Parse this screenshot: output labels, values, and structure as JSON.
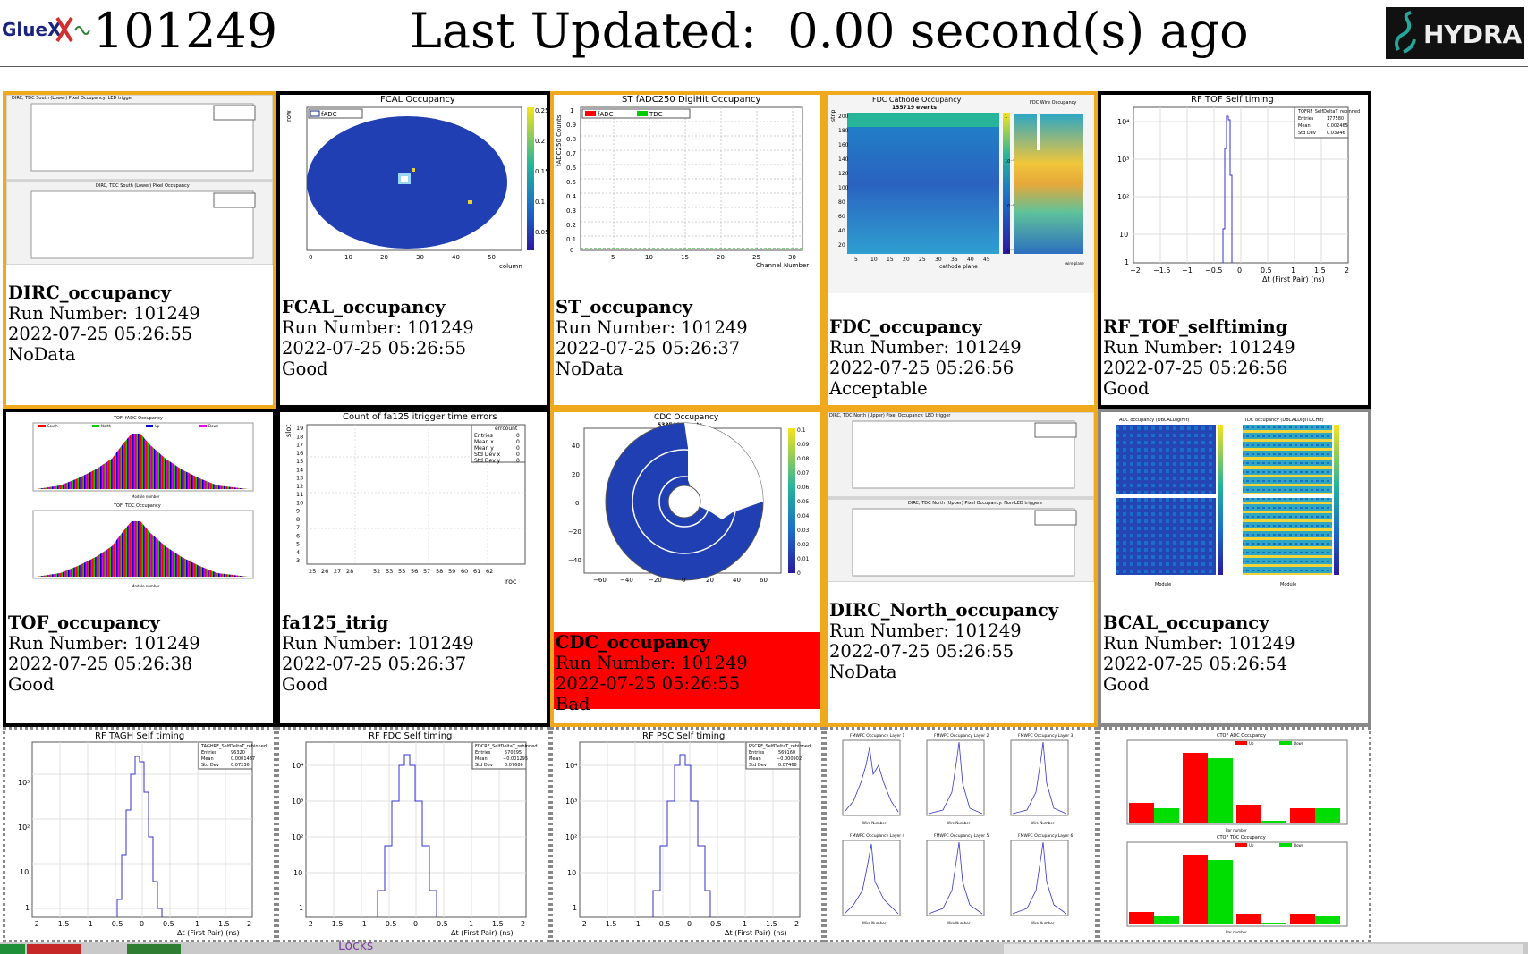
{
  "header": {
    "logo_text": "GlueX",
    "run_number": "101249",
    "last_updated": "Last Updated:  0.00 second(s) ago",
    "hydra_text": "HYDRA"
  },
  "colors": {
    "good_border": "#000000",
    "warn_border": "#f0a81c",
    "bad_fill": "#ff0000",
    "neutral_border": "#888888",
    "hist_line": "#3333cc"
  },
  "panels": [
    {
      "name": "DIRC_occupancy",
      "run": "Run Number: 101249",
      "time": "2022-07-25 05:26:55",
      "status": "NoData",
      "plot_titles": [
        "DIRC, TDC South (Lower) Pixel Occupancy: LED trigger",
        "DIRC, TDC South (Lower) Pixel Occupancy"
      ]
    },
    {
      "name": "FCAL_occupancy",
      "run": "Run Number: 101249",
      "time": "2022-07-25 05:26:55",
      "status": "Good",
      "plot_title": "FCAL Occupancy",
      "legend": "fADC",
      "x_label": "column",
      "y_label": "row",
      "x_ticks": [
        "0",
        "10",
        "20",
        "30",
        "40",
        "50"
      ],
      "z_ticks": [
        "0.25",
        "0.2",
        "0.15",
        "0.1",
        "0.05"
      ]
    },
    {
      "name": "ST_occupancy",
      "run": "Run Number: 101249",
      "time": "2022-07-25 05:26:37",
      "status": "NoData",
      "plot_title": "ST fADC250 DigiHit Occupancy",
      "legend": [
        "fADC",
        "TDC"
      ],
      "x_label": "Channel Number",
      "y_label": "fADC250 Counts",
      "x_ticks": [
        "5",
        "10",
        "15",
        "20",
        "25",
        "30"
      ],
      "y_ticks": [
        "1",
        "0.9",
        "0.8",
        "0.7",
        "0.6",
        "0.5",
        "0.4",
        "0.3",
        "0.2",
        "0.1",
        "0"
      ]
    },
    {
      "name": "FDC_occupancy",
      "run": "Run Number: 101249",
      "time": "2022-07-25 05:26:56",
      "status": "Acceptable",
      "plot_title": "FDC Cathode Occupancy",
      "subtitle": "155719 events",
      "x_label": "cathode plane",
      "y_label": "strip",
      "side_title": "FDC Wire Occupancy",
      "side_x_label": "wire plane",
      "x_ticks": [
        "5",
        "10",
        "15",
        "20",
        "25",
        "30",
        "35",
        "40",
        "45"
      ],
      "y_ticks": [
        "200",
        "180",
        "160",
        "140",
        "120",
        "100",
        "80",
        "60",
        "40",
        "20"
      ],
      "z_ticks": [
        "1",
        "10⁻¹",
        "10⁻²",
        "10⁻³"
      ]
    },
    {
      "name": "RF_TOF_selftiming",
      "run": "Run Number: 101249",
      "time": "2022-07-25 05:26:56",
      "status": "Good",
      "plot_title": "RF TOF Self timing",
      "x_label": "Δt (First Pair) (ns)",
      "stats": {
        "title": "TOFRF_SelfDeltaT_rebinned",
        "Entries": "177580",
        "Mean": "0.002465",
        "Std Dev": "0.03946"
      },
      "x_ticks": [
        "−2",
        "−1.5",
        "−1",
        "−0.5",
        "0",
        "0.5",
        "1",
        "1.5",
        "2"
      ],
      "y_ticks": [
        "10⁴",
        "10³",
        "10²",
        "10",
        "1"
      ]
    },
    {
      "name": "TOF_occupancy",
      "run": "Run Number: 101249",
      "time": "2022-07-25 05:26:38",
      "status": "Good",
      "plot_titles": [
        "TOF, fADC Occupancy",
        "TOF, TDC Occupancy"
      ],
      "x_label": "Module number",
      "legend": [
        "South",
        "North",
        "Up",
        "Down"
      ]
    },
    {
      "name": "fa125_itrig",
      "run": "Run Number: 101249",
      "time": "2022-07-25 05:26:37",
      "status": "Good",
      "plot_title": "Count of fa125 itrigger time errors",
      "x_label": "roc",
      "y_label": "slot",
      "stats": {
        "title": "errcount",
        "Entries": "0",
        "Mean x": "0",
        "Mean y": "0",
        "Std Dev x": "0",
        "Std Dev y": "0"
      },
      "x_ticks": [
        "25",
        "26",
        "27",
        "28",
        "52",
        "53",
        "55",
        "56",
        "57",
        "58",
        "59",
        "60",
        "61",
        "62"
      ],
      "y_ticks": [
        "19",
        "18",
        "17",
        "16",
        "15",
        "14",
        "13",
        "12",
        "11",
        "10",
        "9",
        "8",
        "7",
        "6",
        "5",
        "4",
        "3"
      ]
    },
    {
      "name": "CDC_occupancy",
      "run": "Run Number: 101249",
      "time": "2022-07-25 05:26:55",
      "status": "Bad",
      "plot_title": "CDC Occupancy",
      "subtitle": "538546 events",
      "x_ticks": [
        "−60",
        "−40",
        "−20",
        "0",
        "20",
        "40",
        "60"
      ],
      "y_ticks": [
        "40",
        "20",
        "0",
        "−20",
        "−40"
      ],
      "z_ticks": [
        "0.1",
        "0.09",
        "0.08",
        "0.07",
        "0.06",
        "0.05",
        "0.04",
        "0.03",
        "0.02",
        "0.01",
        "0"
      ]
    },
    {
      "name": "DIRC_North_occupancy",
      "run": "Run Number: 101249",
      "time": "2022-07-25 05:26:55",
      "status": "NoData",
      "plot_titles": [
        "DIRC, TDC North (Upper) Pixel Occupancy: LED trigger",
        "DIRC, TDC North (Upper) Pixel Occupancy: Non-LED triggers"
      ]
    },
    {
      "name": "BCAL_occupancy",
      "run": "Run Number: 101249",
      "time": "2022-07-25 05:26:54",
      "status": "Good",
      "plot_titles": [
        "ADC occupancy (DBCALDigiHit)",
        "TDC occupancy (DBCALDigiTDCHit)"
      ],
      "x_label": "Module"
    },
    {
      "name": "RF_TAGH_selftiming",
      "plot_title": "RF TAGH Self timing",
      "x_label": "Δt (First Pair) (ns)",
      "stats": {
        "title": "TAGHRF_SelfDeltaT_rebinned",
        "Entries": "96320",
        "Mean": "0.0001487",
        "Std Dev": "0.07236"
      },
      "x_ticks": [
        "−2",
        "−1.5",
        "−1",
        "−0.5",
        "0",
        "0.5",
        "1",
        "1.5",
        "2"
      ],
      "y_ticks": [
        "10³",
        "10²",
        "10",
        "1"
      ]
    },
    {
      "name": "RF_FDC_selftiming",
      "plot_title": "RF FDC Self timing",
      "x_label": "Δt (First Pair) (ns)",
      "stats": {
        "title": "FDCRF_SelfDeltaT_rebinned",
        "Entries": "570295",
        "Mean": "−0.001295",
        "Std Dev": "0.07686"
      },
      "x_ticks": [
        "−2",
        "−1.5",
        "−1",
        "−0.5",
        "0",
        "0.5",
        "1",
        "1.5",
        "2"
      ],
      "y_ticks": [
        "10⁴",
        "10³",
        "10²",
        "10",
        "1"
      ]
    },
    {
      "name": "RF_PSC_selftiming",
      "plot_title": "RF PSC Self timing",
      "x_label": "Δt (First Pair) (ns)",
      "stats": {
        "title": "PSCRF_SelfDeltaT_rebinned",
        "Entries": "569160",
        "Mean": "−0.000902",
        "Std Dev": "0.07468"
      },
      "x_ticks": [
        "−2",
        "−1.5",
        "−1",
        "−0.5",
        "0",
        "0.5",
        "1",
        "1.5",
        "2"
      ],
      "y_ticks": [
        "10⁴",
        "10³",
        "10²",
        "10",
        "1"
      ]
    },
    {
      "name": "FMWPC_occupancy",
      "plot_titles": [
        "FMWPC Occupancy Layer 1",
        "FMWPC Occupancy Layer 2",
        "FMWPC Occupancy Layer 3",
        "FMWPC Occupancy Layer 4",
        "FMWPC Occupancy Layer 5",
        "FMWPC Occupancy Layer 6"
      ],
      "x_label": "Wire Number"
    },
    {
      "name": "CTOF_occupancy",
      "plot_titles": [
        "CTOF ADC Occupancy",
        "CTOF TDC Occupancy"
      ],
      "x_label": "Bar number",
      "legend": [
        "Up",
        "Down"
      ]
    }
  ],
  "bottom": {
    "locks_label": "Locks"
  }
}
